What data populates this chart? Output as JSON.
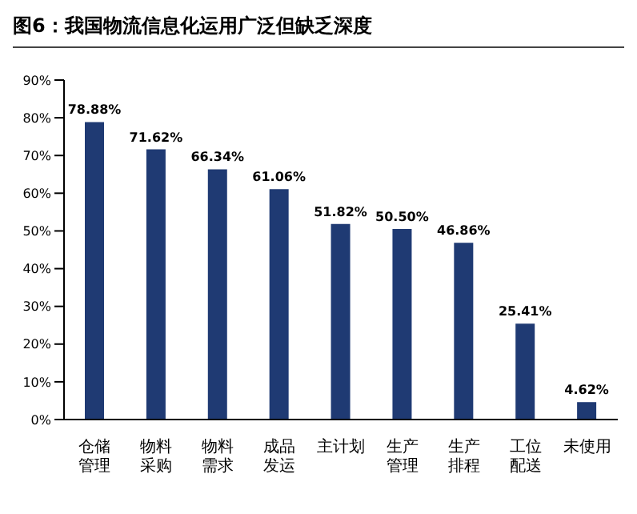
{
  "chart_data": {
    "type": "bar",
    "title": "图6：我国物流信息化运用广泛但缺乏深度",
    "categories": [
      "仓储管理",
      "物料采购",
      "物料需求",
      "成品发运",
      "主计划",
      "生产管理",
      "生产排程",
      "工位配送",
      "未使用"
    ],
    "values": [
      78.88,
      71.62,
      66.34,
      61.06,
      51.82,
      50.5,
      46.86,
      25.41,
      4.62
    ],
    "value_labels": [
      "78.88%",
      "71.62%",
      "66.34%",
      "61.06%",
      "51.82%",
      "50.50%",
      "46.86%",
      "25.41%",
      "4.62%"
    ],
    "color": "#1f3a73",
    "ylim": [
      0,
      90
    ],
    "yticks": [
      {
        "value": 0,
        "label": "0%"
      },
      {
        "value": 10,
        "label": "10%"
      },
      {
        "value": 20,
        "label": "20%"
      },
      {
        "value": 30,
        "label": "30%"
      },
      {
        "value": 40,
        "label": "40%"
      },
      {
        "value": 50,
        "label": "50%"
      },
      {
        "value": 60,
        "label": "60%"
      },
      {
        "value": 70,
        "label": "70%"
      },
      {
        "value": 80,
        "label": "80%"
      },
      {
        "value": 90,
        "label": "90%"
      }
    ],
    "grid": false,
    "legend": false
  }
}
